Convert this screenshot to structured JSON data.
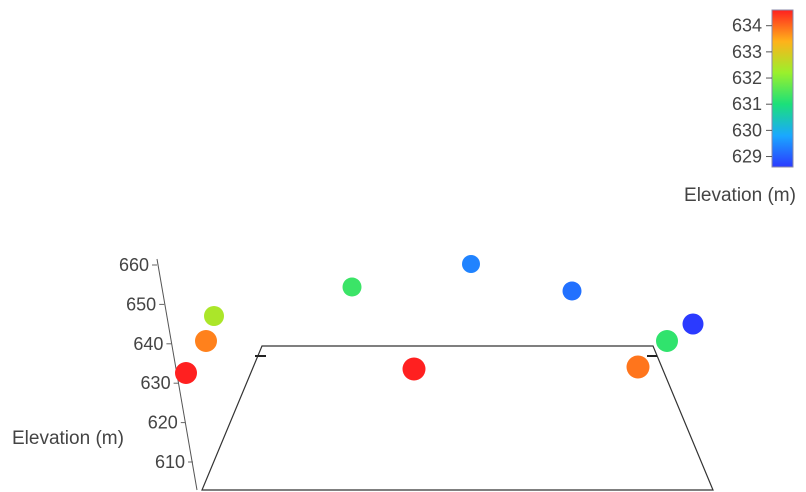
{
  "chart_data": {
    "type": "scatter",
    "dimension": "3d",
    "zlabel": "Elevation (m)",
    "z_ticks": [
      660,
      650,
      640,
      630,
      620,
      610
    ],
    "grid": false,
    "colorscale": "rainbow",
    "colorbar": {
      "title": "Elevation (m)",
      "ticks": [
        634,
        633,
        632,
        631,
        630,
        629
      ],
      "range": [
        628.6,
        634.6
      ],
      "placement": "top-right"
    },
    "points": [
      {
        "elevation": 634.6,
        "height": 634
      },
      {
        "elevation": 633.8,
        "height": 641
      },
      {
        "elevation": 632.4,
        "height": 648
      },
      {
        "elevation": 631.3,
        "height": 655
      },
      {
        "elevation": 629.4,
        "height": 660
      },
      {
        "elevation": 634.6,
        "height": 634
      },
      {
        "elevation": 629.2,
        "height": 654
      },
      {
        "elevation": 631.2,
        "height": 642
      },
      {
        "elevation": 633.9,
        "height": 634
      },
      {
        "elevation": 628.6,
        "height": 646
      }
    ]
  }
}
